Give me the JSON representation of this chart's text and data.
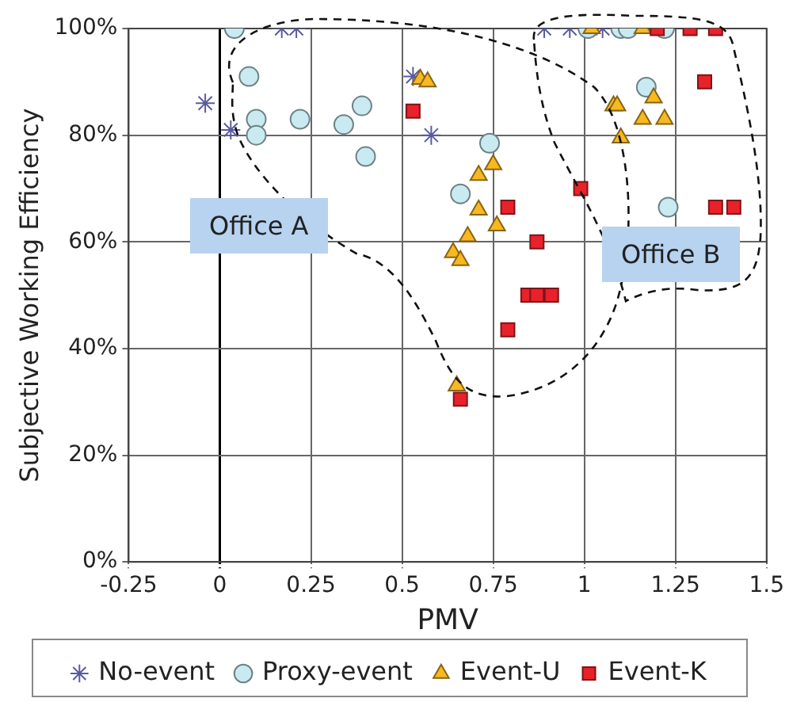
{
  "chart_data": {
    "type": "scatter",
    "xlabel": "PMV",
    "ylabel": "Subjective Working Efficiency",
    "xlim": [
      -0.25,
      1.5
    ],
    "xticks": [
      -0.25,
      0,
      0.25,
      0.5,
      0.75,
      1,
      1.25,
      1.5
    ],
    "ylim": [
      0,
      100
    ],
    "yticks": [
      {
        "value": 0,
        "label": "0%"
      },
      {
        "value": 20,
        "label": "20%"
      },
      {
        "value": 40,
        "label": "40%"
      },
      {
        "value": 60,
        "label": "60%"
      },
      {
        "value": 80,
        "label": "80%"
      },
      {
        "value": 100,
        "label": "100%"
      }
    ],
    "grid": true,
    "legend": "bottom",
    "annotations": [
      "Office A",
      "Office B"
    ],
    "series": [
      {
        "name": "No-event",
        "color": "#5a5aa0",
        "marker": "cross",
        "x": [
          -0.04,
          0.03,
          0.17,
          0.21,
          0.53,
          0.58,
          0.89,
          0.96,
          1.05
        ],
        "values": [
          86,
          81,
          100,
          100,
          91,
          80,
          100,
          100,
          100
        ]
      },
      {
        "name": "Proxy-event",
        "color": "#c8eaf0",
        "marker": "circle",
        "x": [
          0.04,
          0.08,
          0.1,
          0.1,
          0.22,
          0.34,
          0.39,
          0.4,
          0.74,
          0.66,
          1.01,
          1.1,
          1.12,
          1.22,
          1.17,
          1.23
        ],
        "values": [
          100,
          91,
          83,
          80,
          83,
          82,
          85.5,
          76,
          78.5,
          69,
          100,
          100,
          100,
          100,
          89,
          66.5
        ]
      },
      {
        "name": "Event-U",
        "color": "#f8b820",
        "marker": "triangle",
        "x": [
          0.55,
          0.57,
          0.75,
          0.71,
          0.71,
          0.76,
          0.68,
          0.64,
          0.66,
          0.65,
          1.02,
          1.16,
          1.08,
          1.09,
          1.19,
          1.16,
          1.22,
          1.1
        ],
        "values": [
          90.5,
          90,
          74.5,
          72.5,
          66,
          63,
          61,
          58,
          56.5,
          33,
          100,
          100,
          85.5,
          85.5,
          87,
          83,
          83,
          79.5
        ]
      },
      {
        "name": "Event-K",
        "color": "#e8222a",
        "marker": "square",
        "x": [
          0.53,
          0.79,
          0.99,
          0.87,
          0.845,
          0.87,
          0.91,
          0.79,
          0.66,
          1.2,
          1.29,
          1.36,
          1.33,
          1.36,
          1.41
        ],
        "values": [
          84.5,
          66.5,
          70,
          60,
          50,
          50,
          50,
          43.5,
          30.5,
          100,
          100,
          100,
          90,
          66.5,
          66.5
        ]
      }
    ]
  }
}
